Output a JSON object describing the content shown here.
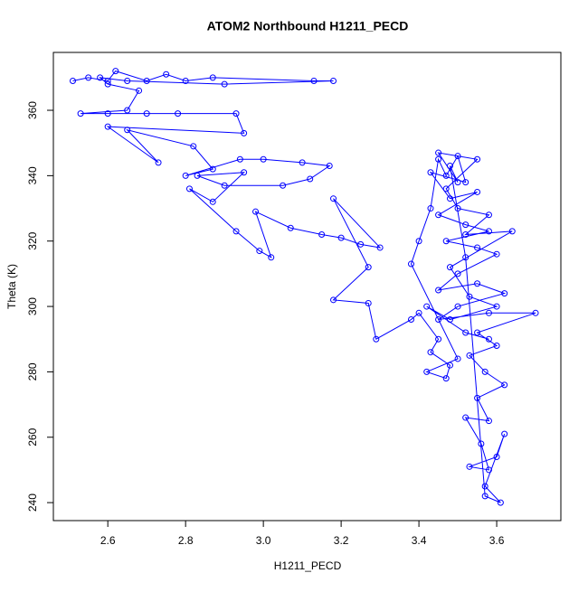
{
  "chart_data": {
    "type": "line-points",
    "title": "ATOM2 Northbound H1211_PECD",
    "x_label": "H1211_PECD",
    "y_label": "Theta (K)",
    "xlim": [
      2.46,
      3.765
    ],
    "ylim": [
      234.5,
      377.7
    ],
    "xticks": [
      2.6,
      2.8,
      {
        "value": 3,
        "label": "3.0"
      },
      3.2,
      3.4,
      3.6
    ],
    "yticks": [
      240,
      260,
      280,
      300,
      320,
      340,
      360
    ],
    "series": [
      {
        "color": "#0000ff",
        "x": [
          2.51,
          2.55,
          2.6,
          2.62,
          2.7,
          2.75,
          2.8,
          2.87,
          3.13,
          3.18,
          2.9,
          2.65,
          2.58,
          2.6,
          2.68,
          2.65,
          2.53,
          2.6,
          2.7,
          2.78,
          2.93,
          2.95,
          2.6,
          2.73,
          2.65,
          2.82,
          2.87,
          2.8,
          2.94,
          3.0,
          3.1,
          3.17,
          3.12,
          3.05,
          2.9,
          2.83,
          2.95,
          2.87,
          2.81,
          2.93,
          2.99,
          3.02,
          2.98,
          3.07,
          3.15,
          3.2,
          3.25,
          3.3,
          3.18,
          3.27,
          3.18,
          3.27,
          3.29,
          3.38,
          3.4,
          3.45,
          3.43,
          3.48,
          3.47,
          3.42,
          3.5,
          3.38,
          3.4,
          3.43,
          3.45,
          3.47,
          3.5,
          3.52,
          3.43,
          3.48,
          3.55,
          3.45,
          3.52,
          3.58,
          3.47,
          3.55,
          3.6,
          3.5,
          3.45,
          3.55,
          3.62,
          3.5,
          3.45,
          3.58,
          3.7,
          3.55,
          3.6,
          3.53,
          3.57,
          3.62,
          3.55,
          3.58,
          3.52,
          3.56,
          3.58,
          3.53,
          3.6,
          3.62,
          3.57,
          3.61,
          3.57,
          3.52,
          3.48,
          3.5,
          3.45,
          3.55,
          3.47,
          3.5,
          3.58,
          3.52,
          3.64,
          3.48,
          3.53,
          3.6,
          3.48,
          3.42,
          3.52,
          3.58
        ],
        "values": [
          369,
          370,
          369,
          372,
          369,
          371,
          369,
          370,
          369,
          369,
          368,
          369,
          370,
          368,
          366,
          360,
          359,
          359,
          359,
          359,
          359,
          353,
          355,
          344,
          354,
          349,
          342,
          340,
          345,
          345,
          344,
          343,
          339,
          337,
          337,
          340,
          341,
          332,
          336,
          323,
          317,
          315,
          329,
          324,
          322,
          321,
          319,
          318,
          333,
          312,
          302,
          301,
          290,
          296,
          298,
          290,
          286,
          282,
          278,
          280,
          284,
          313,
          320,
          330,
          345,
          340,
          346,
          338,
          341,
          333,
          335,
          328,
          325,
          323,
          320,
          318,
          316,
          310,
          305,
          307,
          304,
          300,
          296,
          298,
          298,
          292,
          288,
          285,
          280,
          276,
          272,
          265,
          266,
          258,
          250,
          251,
          254,
          261,
          245,
          240,
          242,
          315,
          343,
          338,
          347,
          345,
          336,
          330,
          328,
          322,
          323,
          312,
          303,
          300,
          296,
          300,
          292,
          290
        ]
      }
    ]
  }
}
